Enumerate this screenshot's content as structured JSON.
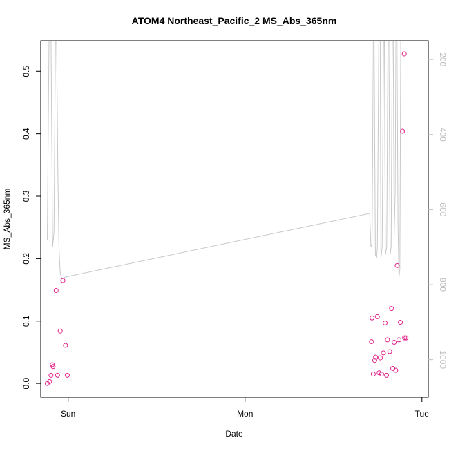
{
  "chart_data": {
    "type": "scatter",
    "title": "ATOM4 Northeast_Pacific_2 MS_Abs_365nm",
    "xlabel": "Date",
    "ylabel": "MS_Abs_365nm",
    "x_unit": "days since start of Sun",
    "xlim": [
      -0.155,
      2.036
    ],
    "ylim": [
      -0.022,
      0.549
    ],
    "x_ticks": [
      {
        "value": 0,
        "label": "Sun"
      },
      {
        "value": 1,
        "label": "Mon"
      },
      {
        "value": 2,
        "label": "Tue"
      }
    ],
    "y_ticks": [
      0.0,
      0.1,
      0.2,
      0.3,
      0.4,
      0.5
    ],
    "y_tick_labels": [
      "0.0",
      "0.1",
      "0.2",
      "0.3",
      "0.4",
      "0.5"
    ],
    "right_axis": {
      "reversed": true,
      "ylim": [
        150,
        1100
      ],
      "ticks": [
        200,
        400,
        600,
        800,
        1000
      ],
      "tick_labels": [
        "200",
        "400",
        "600",
        "800",
        "1000"
      ],
      "color": "#bdbdbd"
    },
    "series": [
      {
        "mark": "points",
        "color": "#e0218a",
        "x": [
          -0.118,
          -0.105,
          -0.097,
          -0.09,
          -0.085,
          -0.068,
          -0.06,
          -0.045,
          -0.03,
          -0.015,
          -0.005,
          1.715,
          1.718,
          1.725,
          1.733,
          1.738,
          1.748,
          1.758,
          1.765,
          1.772,
          1.782,
          1.792,
          1.8,
          1.805,
          1.818,
          1.828,
          1.835,
          1.843,
          1.852,
          1.86,
          1.87,
          1.878,
          1.89,
          1.9,
          1.902,
          1.91
        ],
        "y": [
          0.0,
          0.003,
          0.013,
          0.03,
          0.027,
          0.149,
          0.013,
          0.084,
          0.165,
          0.061,
          0.013,
          0.067,
          0.105,
          0.015,
          0.037,
          0.042,
          0.107,
          0.017,
          0.041,
          0.015,
          0.049,
          0.097,
          0.013,
          0.07,
          0.051,
          0.12,
          0.024,
          0.066,
          0.021,
          0.189,
          0.07,
          0.098,
          0.404,
          0.528,
          0.073,
          0.073
        ]
      },
      {
        "mark": "line",
        "color": "#c8c8c8",
        "axis": "right",
        "x": [
          -0.118,
          -0.108,
          -0.097,
          -0.088,
          -0.08,
          -0.072,
          -0.065,
          -0.058,
          -0.052,
          -0.045,
          -0.035,
          -0.02,
          1.705,
          1.708,
          1.712,
          1.718,
          1.725,
          1.73,
          1.737,
          1.744,
          1.748,
          1.756,
          1.764,
          1.768,
          1.775,
          1.783,
          1.788,
          1.793,
          1.801,
          1.808,
          1.813,
          1.82,
          1.826,
          1.832,
          1.838,
          1.843,
          1.849,
          1.853,
          1.859,
          1.865,
          1.87,
          1.875,
          1.88,
          1.886,
          1.892,
          1.898,
          1.904
        ],
        "y": [
          680,
          150,
          150,
          700,
          660,
          150,
          150,
          500,
          700,
          770,
          785,
          780,
          610,
          650,
          700,
          690,
          150,
          150,
          720,
          730,
          700,
          150,
          150,
          730,
          700,
          150,
          150,
          720,
          700,
          150,
          150,
          720,
          700,
          150,
          150,
          670,
          550,
          150,
          150,
          650,
          780,
          760,
          150,
          150,
          100,
          100,
          100
        ]
      }
    ]
  }
}
